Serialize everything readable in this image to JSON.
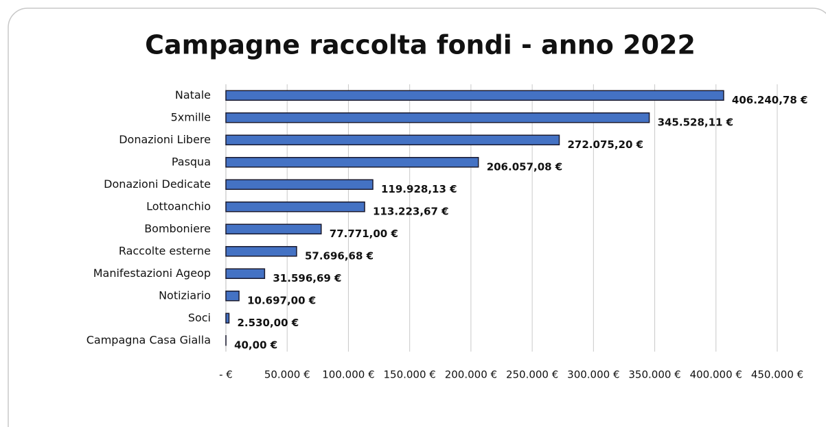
{
  "chart_data": {
    "type": "bar",
    "orientation": "horizontal",
    "title": "Campagne raccolta fondi - anno 2022",
    "categories": [
      "Natale",
      "5xmille",
      "Donazioni Libere",
      "Pasqua",
      "Donazioni Dedicate",
      "Lottoanchio",
      "Bomboniere",
      "Raccolte esterne",
      "Manifestazioni Ageop",
      "Notiziario",
      "Soci",
      "Campagna Casa Gialla"
    ],
    "values": [
      406240.78,
      345528.11,
      272075.2,
      206057.08,
      119928.13,
      113223.67,
      77771.0,
      57696.68,
      31596.69,
      10697.0,
      2530.0,
      40.0
    ],
    "value_labels": [
      "406.240,78 €",
      "345.528,11 €",
      "272.075,20 €",
      "206.057,08 €",
      "119.928,13 €",
      "113.223,67 €",
      "77.771,00 €",
      "57.696,68 €",
      "31.596,69 €",
      "10.697,00 €",
      "2.530,00 €",
      "40,00 €"
    ],
    "color": "#4472c4",
    "xlim": [
      0,
      450000
    ],
    "xticks": [
      {
        "value": 0,
        "label": "- €"
      },
      {
        "value": 50000,
        "label": "50.000 €"
      },
      {
        "value": 100000,
        "label": "100.000 €"
      },
      {
        "value": 150000,
        "label": "150.000 €"
      },
      {
        "value": 200000,
        "label": "200.000 €"
      },
      {
        "value": 250000,
        "label": "250.000 €"
      },
      {
        "value": 300000,
        "label": "300.000 €"
      },
      {
        "value": 350000,
        "label": "350.000 €"
      },
      {
        "value": 400000,
        "label": "400.000 €"
      },
      {
        "value": 450000,
        "label": "450.000 €"
      }
    ],
    "grid": true
  }
}
